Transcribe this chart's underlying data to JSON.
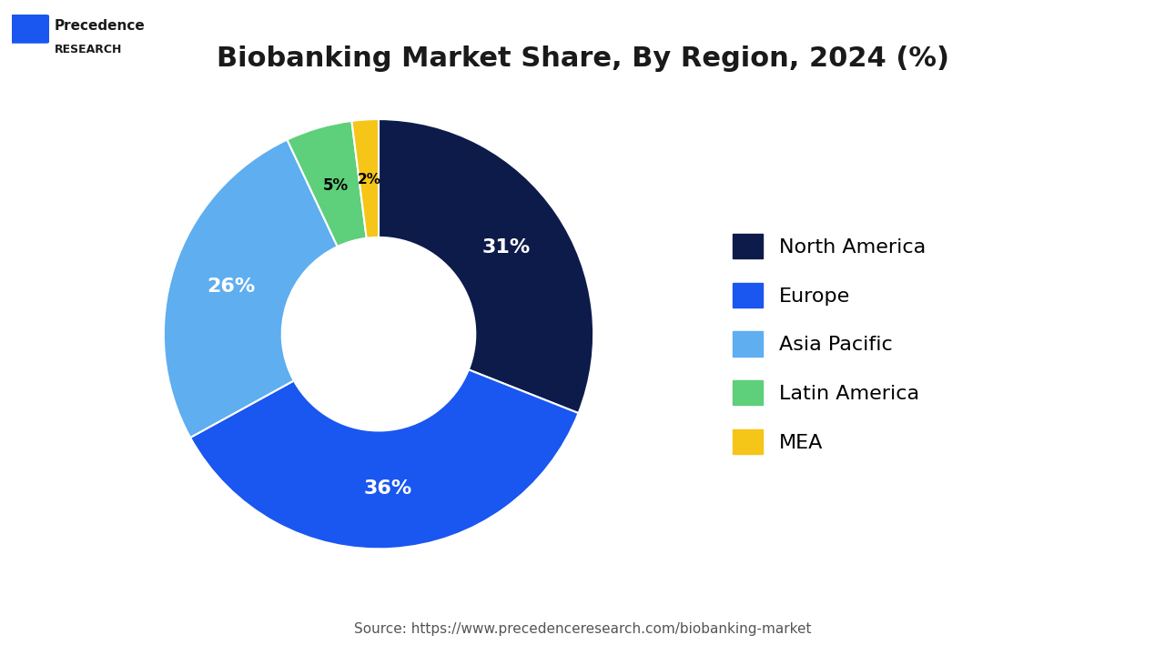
{
  "title": "Biobanking Market Share, By Region, 2024 (%)",
  "title_fontsize": 22,
  "title_fontweight": "bold",
  "labels": [
    "North America",
    "Europe",
    "Asia Pacific",
    "Latin America",
    "MEA"
  ],
  "values": [
    31,
    36,
    26,
    5,
    2
  ],
  "colors": [
    "#0d1b4b",
    "#1a56f0",
    "#5eaef0",
    "#5ecf7a",
    "#f5c518"
  ],
  "pct_labels": [
    "31%",
    "36%",
    "26%",
    "5%",
    "2%"
  ],
  "pct_colors": [
    "white",
    "white",
    "white",
    "black",
    "black"
  ],
  "pct_fontsizes": [
    16,
    16,
    16,
    12,
    11
  ],
  "source_text": "Source: https://www.precedenceresearch.com/biobanking-market",
  "source_fontsize": 11,
  "background_color": "#ffffff",
  "logo_text_line1": "Precedence",
  "logo_text_line2": "RESEARCH",
  "wedge_linewidth": 1.5,
  "wedge_edgecolor": "white",
  "separator_color": "#cccccc"
}
